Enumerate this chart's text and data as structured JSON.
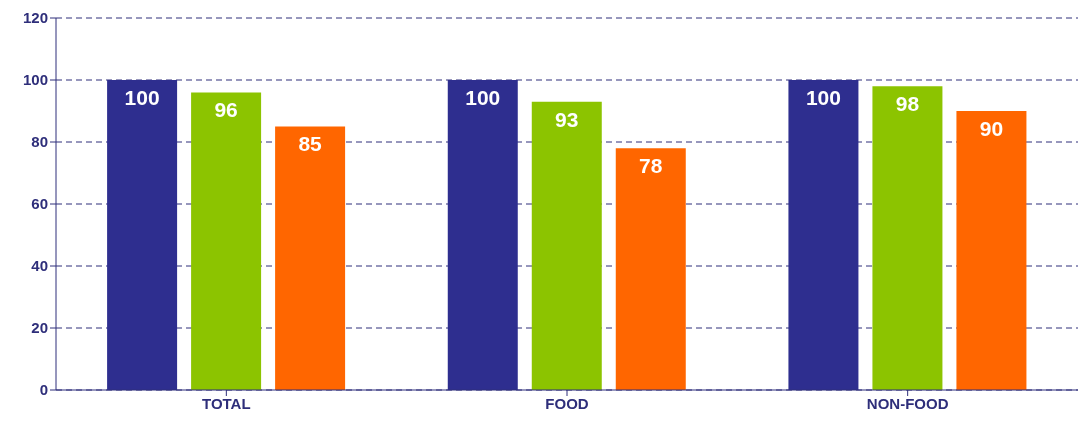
{
  "chart_data": {
    "type": "bar",
    "categories": [
      "TOTAL",
      "FOOD",
      "NON-FOOD"
    ],
    "series": [
      {
        "color": "#2e2e8f",
        "values": [
          100,
          100,
          100
        ]
      },
      {
        "color": "#8cc400",
        "values": [
          96,
          93,
          98
        ]
      },
      {
        "color": "#ff6600",
        "values": [
          85,
          78,
          90
        ]
      }
    ],
    "ylim": [
      0,
      120
    ],
    "yticks": [
      0,
      20,
      40,
      60,
      80,
      100,
      120
    ],
    "grid": "y",
    "data_labels": true
  }
}
